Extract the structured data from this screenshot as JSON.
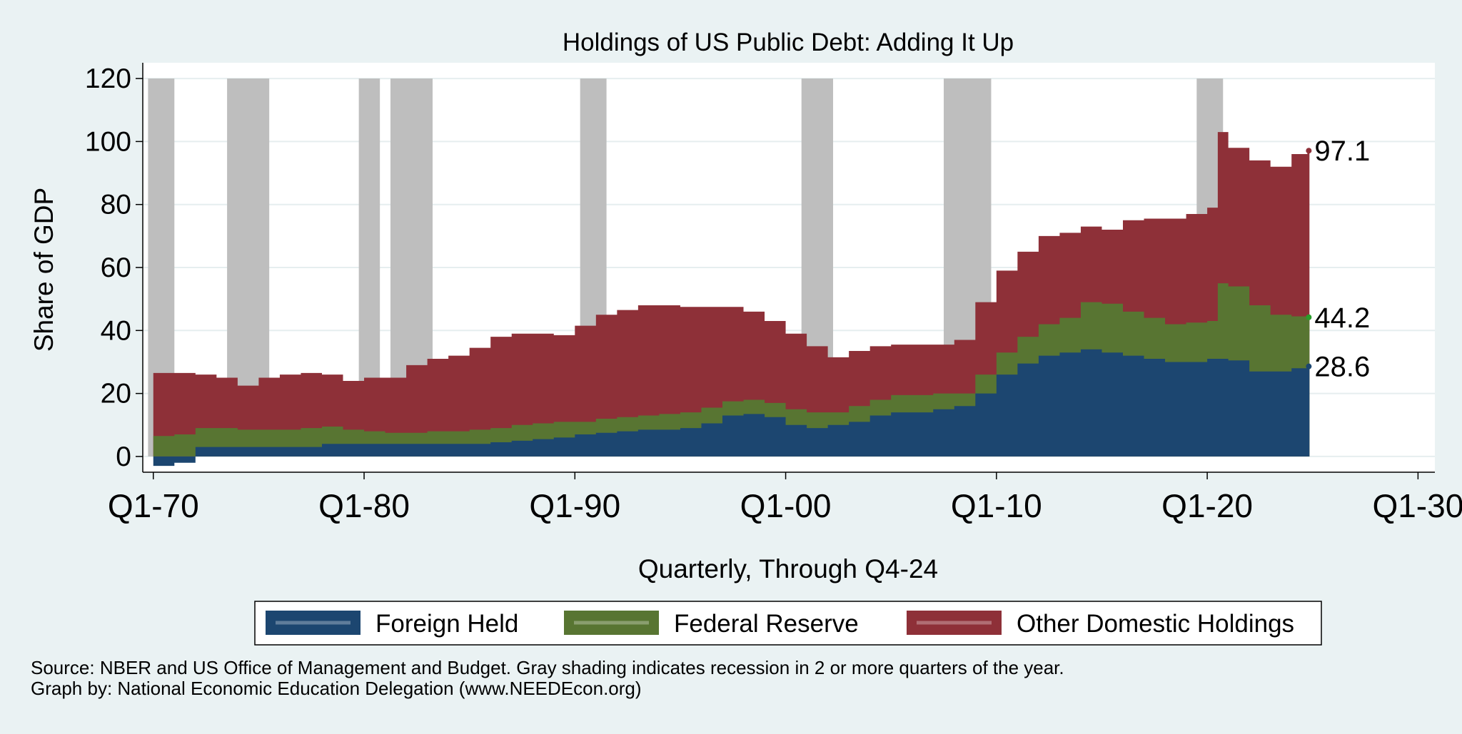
{
  "chart_data": {
    "type": "area",
    "stacked": true,
    "title": "Holdings of US Public Debt: Adding It Up",
    "xlabel": "Quarterly, Through Q4-24",
    "ylabel": "Share of GDP",
    "ylim": [
      -5,
      125
    ],
    "xlim": [
      1969.5,
      2030.8
    ],
    "y_ticks": [
      0,
      20,
      40,
      60,
      80,
      100,
      120
    ],
    "x_ticks": [
      {
        "value": 1970,
        "label": "Q1-70"
      },
      {
        "value": 1980,
        "label": "Q1-80"
      },
      {
        "value": 1990,
        "label": "Q1-90"
      },
      {
        "value": 2000,
        "label": "Q1-00"
      },
      {
        "value": 2010,
        "label": "Q1-10"
      },
      {
        "value": 2020,
        "label": "Q1-20"
      },
      {
        "value": 2030,
        "label": "Q1-30"
      }
    ],
    "grid": true,
    "legend_position": "bottom",
    "colors": {
      "Foreign Held": "#1c4670",
      "Federal Reserve": "#587532",
      "Other Domestic Holdings": "#8e3038",
      "recession": "#bebebe",
      "plot_background": "#ffffff",
      "page_background": "#eaf2f3"
    },
    "recession_value": 120,
    "recessions": [
      [
        1969.75,
        1971.0
      ],
      [
        1973.5,
        1975.5
      ],
      [
        1979.75,
        1980.75
      ],
      [
        1981.25,
        1983.25
      ],
      [
        1990.25,
        1991.5
      ],
      [
        2000.75,
        2002.25
      ],
      [
        2007.5,
        2009.75
      ],
      [
        2019.5,
        2020.75
      ]
    ],
    "x": [
      1970,
      1971,
      1972,
      1973,
      1974,
      1975,
      1976,
      1977,
      1978,
      1979,
      1980,
      1981,
      1982,
      1983,
      1984,
      1985,
      1986,
      1987,
      1988,
      1989,
      1990,
      1991,
      1992,
      1993,
      1994,
      1995,
      1996,
      1997,
      1998,
      1999,
      2000,
      2001,
      2002,
      2003,
      2004,
      2005,
      2006,
      2007,
      2008,
      2009,
      2010,
      2011,
      2012,
      2013,
      2014,
      2015,
      2016,
      2017,
      2018,
      2019,
      2020,
      2020.5,
      2021,
      2022,
      2023,
      2024,
      2024.75
    ],
    "series": [
      {
        "name": "Foreign Held",
        "values": [
          -3,
          -2,
          3,
          3,
          3,
          3,
          3,
          3,
          4,
          4,
          4,
          4,
          4,
          4,
          4,
          4,
          4.5,
          5,
          5.5,
          6,
          7,
          7.5,
          8,
          8.5,
          8.5,
          9,
          10.5,
          13,
          13.5,
          12.5,
          10,
          9,
          10,
          11,
          13,
          14,
          14,
          15,
          16,
          20,
          26,
          29.5,
          32,
          33,
          34,
          33,
          32,
          31,
          30,
          30,
          31,
          31,
          30.5,
          27,
          27,
          28,
          28.6
        ]
      },
      {
        "name": "Federal Reserve",
        "values": [
          6.5,
          7,
          9,
          9,
          8.5,
          8.5,
          8.5,
          9,
          9.5,
          8.5,
          8,
          7.5,
          7.5,
          8,
          8,
          8.5,
          9,
          10,
          10.5,
          11,
          11,
          12,
          12.5,
          13,
          13.5,
          14,
          15.5,
          17.5,
          18,
          17,
          15,
          14,
          14,
          16,
          18,
          19.5,
          19.5,
          20,
          20,
          26,
          33,
          38,
          42,
          44,
          49,
          48.5,
          46,
          44,
          42,
          42.5,
          43,
          55,
          54,
          48,
          45,
          44.5,
          44.2
        ]
      },
      {
        "name": "Other Domestic Holdings",
        "values": [
          26.5,
          26.5,
          26,
          25,
          22.5,
          25,
          26,
          26.5,
          26,
          24,
          25,
          25,
          29,
          31,
          32,
          34.5,
          38,
          39,
          39,
          38.5,
          41.5,
          45,
          46.5,
          48,
          48,
          47.5,
          47.5,
          47.5,
          46,
          43,
          39,
          35,
          31.5,
          33.5,
          35,
          35.5,
          35.5,
          35.5,
          37,
          49,
          59,
          65,
          70,
          71,
          73,
          72,
          75,
          75.5,
          75.5,
          77,
          79,
          103,
          98,
          94,
          92,
          96,
          97.1
        ]
      }
    ],
    "end_labels": [
      "97.1",
      "44.2",
      "28.6"
    ],
    "legend": [
      "Foreign Held",
      "Federal Reserve",
      "Other Domestic Holdings"
    ]
  },
  "footer": {
    "source": "Source: NBER and US Office of Management and Budget. Gray shading indicates recession in 2 or more quarters of the year.",
    "credit": "Graph by: National Economic Education Delegation (www.NEEDEcon.org)"
  }
}
